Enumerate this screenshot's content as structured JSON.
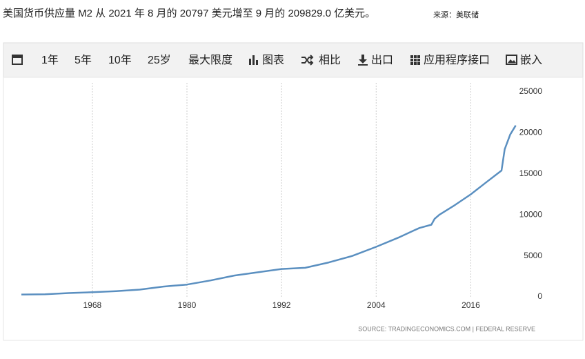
{
  "chart_data": {
    "type": "line",
    "title": "美国货币供应量 M2 从 2021 年 8 月的 20797 美元增至 9 月的 209829.0 亿美元。",
    "source_note": "来源：美联储",
    "source": "SOURCE: TRADINGECONOMICS.COM  |  FEDERAL RESERVE",
    "color": "#5a8fc0",
    "x": [
      1959,
      1962,
      1965,
      1968,
      1971,
      1974,
      1977,
      1980,
      1983,
      1986,
      1989,
      1992,
      1995,
      1998,
      2001,
      2004,
      2007,
      2008.8,
      2009.5,
      2011,
      2011.4,
      2012,
      2014,
      2016,
      2018,
      2019.9,
      2020.3,
      2021,
      2021.7
    ],
    "values": [
      290,
      320,
      460,
      560,
      700,
      880,
      1250,
      1500,
      2000,
      2600,
      3000,
      3400,
      3540,
      4200,
      5000,
      6100,
      7300,
      8100,
      8400,
      8800,
      9500,
      10000,
      11200,
      12500,
      14000,
      15400,
      18000,
      19800,
      20900
    ],
    "xlim": [
      1959,
      2022
    ],
    "xticks": [
      1968,
      1980,
      1992,
      2004,
      2016
    ],
    "ylim": [
      0,
      25000
    ],
    "yticks": [
      0,
      5000,
      10000,
      15000,
      20000,
      25000
    ],
    "grid": true
  },
  "toolbar": {
    "items": [
      "1年",
      "5年",
      "10年",
      "25岁",
      "最大限度",
      "图表",
      "相比",
      "出口",
      "应用程序接口",
      "嵌入"
    ]
  }
}
